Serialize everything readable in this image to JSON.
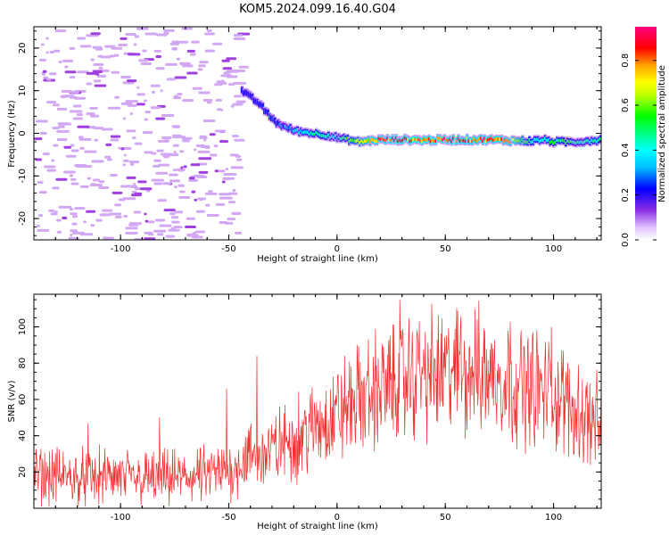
{
  "figure": {
    "title": "KOM5.2024.099.16.40.G04"
  },
  "chart_data": [
    {
      "type": "heatmap",
      "xlabel": "Height of straight line (km)",
      "ylabel": "Frequency (Hz)",
      "xlim": [
        -140,
        122
      ],
      "ylim": [
        -25,
        25
      ],
      "xticks": [
        -100,
        -50,
        0,
        50,
        100
      ],
      "yticks": [
        -20,
        -10,
        0,
        10,
        20
      ],
      "grid": false,
      "colorbar": {
        "label": "Normalized spectral amplitude",
        "range": [
          0.0,
          0.95
        ],
        "ticks": [
          0.0,
          0.2,
          0.4,
          0.6,
          0.8
        ],
        "colormap": "hsv-rainbow",
        "colors": [
          "#ffffff",
          "#8a2be2",
          "#0000ff",
          "#00ffff",
          "#00ff00",
          "#ffff00",
          "#ff8000",
          "#ff0000",
          "#ff0080"
        ]
      },
      "ridge": {
        "x": [
          -44,
          -40,
          -36,
          -32,
          -28,
          -24,
          -20,
          -16,
          -12,
          -8,
          -4,
          0,
          5,
          10,
          20,
          30,
          40,
          50,
          60,
          70,
          80,
          90,
          95,
          100,
          110,
          122
        ],
        "y": [
          10,
          8.5,
          7,
          4.5,
          2.5,
          1.5,
          0.7,
          0.3,
          0.1,
          -0.2,
          -0.5,
          -1,
          -1.5,
          -2,
          -1.5,
          -1.5,
          -1.6,
          -1.5,
          -1.5,
          -1.5,
          -1.7,
          -1.8,
          -1.5,
          -2,
          -2,
          -1.5
        ],
        "amplitude": [
          0.22,
          0.22,
          0.25,
          0.25,
          0.28,
          0.3,
          0.35,
          0.4,
          0.45,
          0.5,
          0.45,
          0.35,
          0.55,
          0.65,
          0.85,
          0.9,
          0.85,
          0.9,
          0.8,
          0.85,
          0.8,
          0.5,
          0.4,
          0.55,
          0.45,
          0.45
        ]
      },
      "noise_region": {
        "xrange": [
          -140,
          -45
        ],
        "yrange": [
          -25,
          25
        ],
        "amplitude": 0.1
      }
    },
    {
      "type": "line",
      "xlabel": "Height of straight line (km)",
      "ylabel": "SNR (v/v)",
      "xlim": [
        -140,
        122
      ],
      "ylim": [
        0,
        118
      ],
      "xticks": [
        -100,
        -50,
        0,
        50,
        100
      ],
      "yticks": [
        20,
        40,
        60,
        80,
        100
      ],
      "grid": false,
      "series": [
        {
          "color": "#f03030",
          "trend": {
            "x": [
              -140,
              -120,
              -100,
              -80,
              -60,
              -50,
              -45,
              -40,
              -30,
              -20,
              -10,
              0,
              10,
              20,
              30,
              40,
              50,
              60,
              70,
              80,
              90,
              100,
              110,
              122
            ],
            "y": [
              18,
              17,
              17,
              16,
              18,
              20,
              25,
              28,
              32,
              38,
              45,
              52,
              60,
              66,
              70,
              73,
              75,
              76,
              74,
              70,
              67,
              62,
              55,
              45
            ]
          },
          "peaks": [
            [
              -37,
              84
            ],
            [
              -51,
              66
            ],
            [
              29,
              115
            ],
            [
              38,
              103
            ],
            [
              57,
              100
            ],
            [
              44,
              91
            ],
            [
              79,
              98
            ],
            [
              99,
              100
            ],
            [
              -115,
              47
            ],
            [
              -82,
              50
            ]
          ]
        }
      ]
    }
  ]
}
